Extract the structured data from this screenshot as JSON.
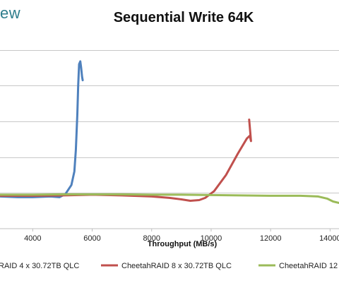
{
  "brand_fragment": "ew",
  "chart_data": {
    "type": "line",
    "title": "Sequential Write 64K",
    "xlabel": "Throughput (MB/s)",
    "ylabel": "",
    "xlim": [
      2900,
      14300
    ],
    "ylim": [
      0,
      6
    ],
    "x_ticks": [
      "4000",
      "6000",
      "8000",
      "10000",
      "12000",
      "14000"
    ],
    "x_tick_values": [
      4000,
      6000,
      8000,
      10000,
      12000,
      14000
    ],
    "y_gridlines": [
      1,
      2,
      3,
      4,
      5
    ],
    "grid": true,
    "legend_position": "bottom",
    "series": [
      {
        "name": "RAID 4 x 30.72TB QLC",
        "color": "#4f81bd",
        "points": [
          [
            2900,
            0.9
          ],
          [
            3500,
            0.88
          ],
          [
            4000,
            0.88
          ],
          [
            4600,
            0.9
          ],
          [
            4900,
            0.88
          ],
          [
            5100,
            0.97
          ],
          [
            5300,
            1.22
          ],
          [
            5400,
            1.6
          ],
          [
            5450,
            2.2
          ],
          [
            5500,
            3.2
          ],
          [
            5530,
            4.0
          ],
          [
            5560,
            4.6
          ],
          [
            5600,
            4.68
          ],
          [
            5630,
            4.5
          ],
          [
            5660,
            4.25
          ],
          [
            5680,
            4.15
          ]
        ]
      },
      {
        "name": "CheetahRAID 8 x 30.72TB QLC",
        "color": "#c0504d",
        "points": [
          [
            2900,
            0.92
          ],
          [
            4000,
            0.92
          ],
          [
            5000,
            0.93
          ],
          [
            6000,
            0.95
          ],
          [
            7000,
            0.93
          ],
          [
            8000,
            0.9
          ],
          [
            8600,
            0.86
          ],
          [
            9000,
            0.82
          ],
          [
            9300,
            0.78
          ],
          [
            9600,
            0.8
          ],
          [
            9800,
            0.86
          ],
          [
            10100,
            1.05
          ],
          [
            10500,
            1.5
          ],
          [
            10900,
            2.1
          ],
          [
            11200,
            2.52
          ],
          [
            11300,
            2.6
          ],
          [
            11340,
            2.45
          ],
          [
            11280,
            3.05
          ]
        ]
      },
      {
        "name": "CheetahRAID 12",
        "color": "#9bbb59",
        "points": [
          [
            2900,
            0.95
          ],
          [
            4000,
            0.95
          ],
          [
            5000,
            0.96
          ],
          [
            6000,
            0.96
          ],
          [
            7000,
            0.96
          ],
          [
            8000,
            0.95
          ],
          [
            9000,
            0.95
          ],
          [
            10000,
            0.94
          ],
          [
            11000,
            0.93
          ],
          [
            12000,
            0.92
          ],
          [
            13000,
            0.92
          ],
          [
            13600,
            0.9
          ],
          [
            13900,
            0.84
          ],
          [
            14100,
            0.76
          ],
          [
            14300,
            0.72
          ]
        ]
      }
    ]
  }
}
